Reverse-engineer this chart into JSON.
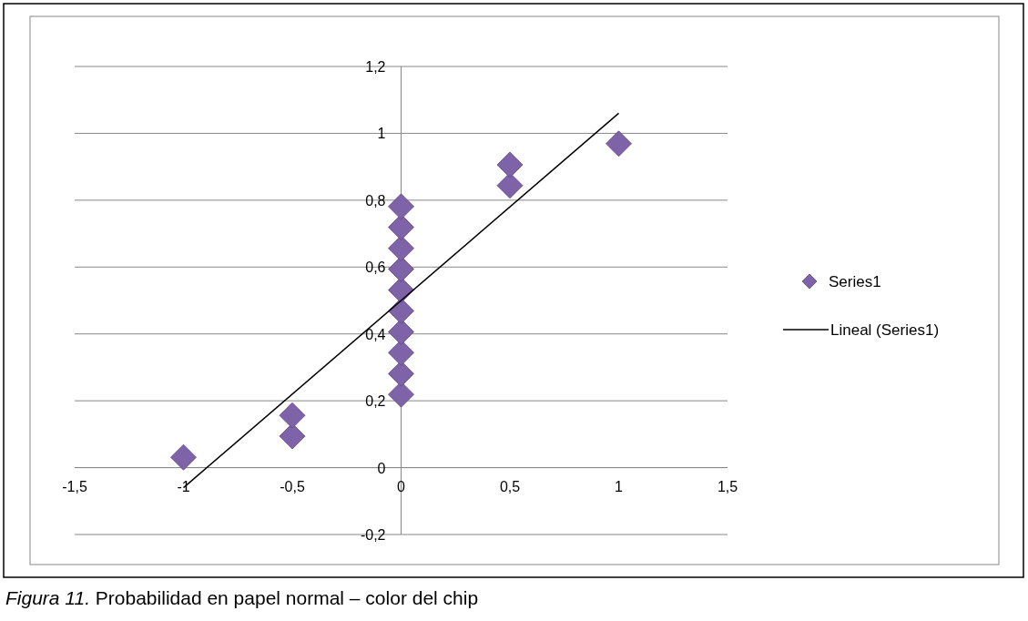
{
  "chart_data": {
    "type": "scatter",
    "annotations": [
      "Figura 11. Probabilidad en papel normal – color del chip"
    ],
    "xlim": [
      -1.5,
      1.5
    ],
    "xticks": [
      {
        "value": -1.5,
        "label": "-1,5"
      },
      -1,
      {
        "value": -0.5,
        "label": "-0,5"
      },
      0,
      {
        "value": 0.5,
        "label": "0,5"
      },
      1,
      {
        "value": 1.5,
        "label": "1,5"
      }
    ],
    "ylim": [
      -0.2,
      1.2
    ],
    "yticks": [
      {
        "value": -0.2,
        "label": "-0,2"
      },
      0,
      {
        "value": 0.2,
        "label": "0,2"
      },
      {
        "value": 0.4,
        "label": "0,4"
      },
      {
        "value": 0.6,
        "label": "0,6"
      },
      {
        "value": 0.8,
        "label": "0,8"
      },
      1,
      {
        "value": 1.2,
        "label": "1,2"
      }
    ],
    "grid": "y",
    "legend": "right",
    "series": [
      {
        "name": "Series1",
        "color": "#7f63a8",
        "marker": "diamond",
        "x": [
          -1,
          -0.5,
          -0.5,
          0,
          0,
          0,
          0,
          0,
          0,
          0,
          0,
          0,
          0,
          0.5,
          0.5,
          1
        ],
        "values": [
          0.031,
          0.094,
          0.156,
          0.219,
          0.281,
          0.344,
          0.406,
          0.469,
          0.531,
          0.594,
          0.656,
          0.719,
          0.781,
          0.844,
          0.906,
          0.969
        ]
      },
      {
        "name": "Lineal (Series1)",
        "type": "line",
        "color": "#000000",
        "marker": "none",
        "line_style": "solid",
        "x": [
          -1,
          1
        ],
        "values": [
          -0.06,
          1.06
        ]
      }
    ]
  }
}
